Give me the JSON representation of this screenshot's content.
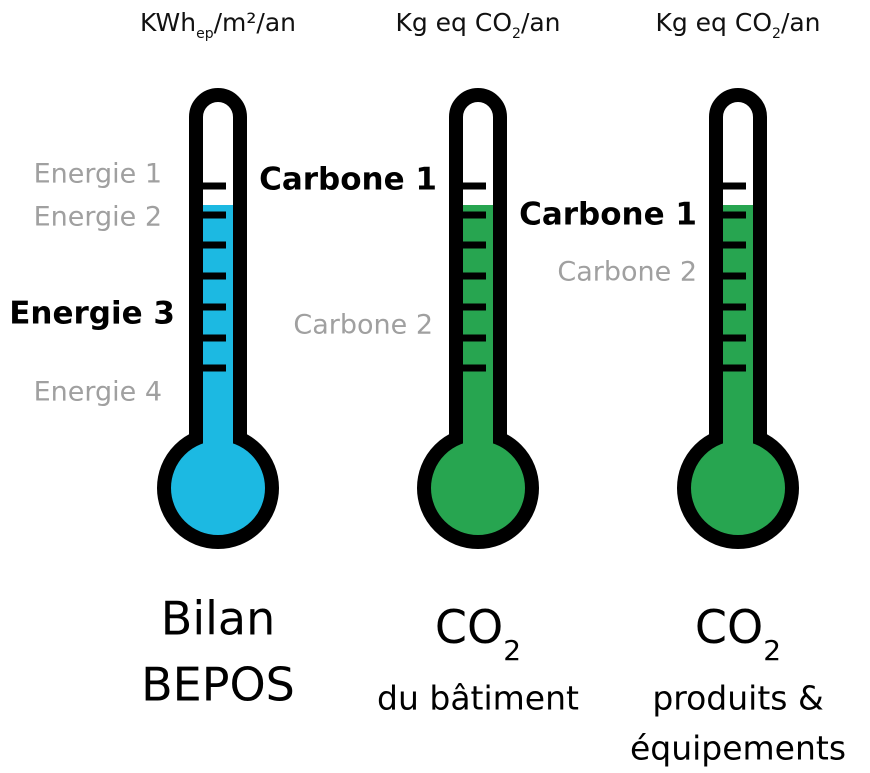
{
  "thermometers": [
    {
      "unit": {
        "main": "KWh",
        "sub": "ep",
        "rest": "/m²/an"
      },
      "fill": "#1cb9e2",
      "labels": [
        {
          "text": "Energie 1",
          "active": false
        },
        {
          "text": "Energie 2",
          "active": false
        },
        {
          "text": "Energie 3",
          "active": true
        },
        {
          "text": "Energie 4",
          "active": false
        }
      ],
      "caption": {
        "title": [
          "Bilan",
          "BEPOS"
        ],
        "lines": []
      }
    },
    {
      "unit": {
        "main": "Kg eq CO",
        "sub": "2",
        "rest": "/an"
      },
      "fill": "#27a550",
      "labels": [
        {
          "text": "Carbone 1",
          "active": true
        },
        {
          "text": "Carbone 2",
          "active": false
        }
      ],
      "caption": {
        "title": [],
        "formula": {
          "main": "CO",
          "sub": "2"
        },
        "lines": [
          "du bâtiment"
        ]
      }
    },
    {
      "unit": {
        "main": "Kg eq CO",
        "sub": "2",
        "rest": "/an"
      },
      "fill": "#27a550",
      "labels": [
        {
          "text": "Carbone 1",
          "active": true
        },
        {
          "text": "Carbone 2",
          "active": false
        }
      ],
      "caption": {
        "title": [],
        "formula": {
          "main": "CO",
          "sub": "2"
        },
        "lines": [
          "produits &",
          "équipements"
        ]
      }
    }
  ]
}
